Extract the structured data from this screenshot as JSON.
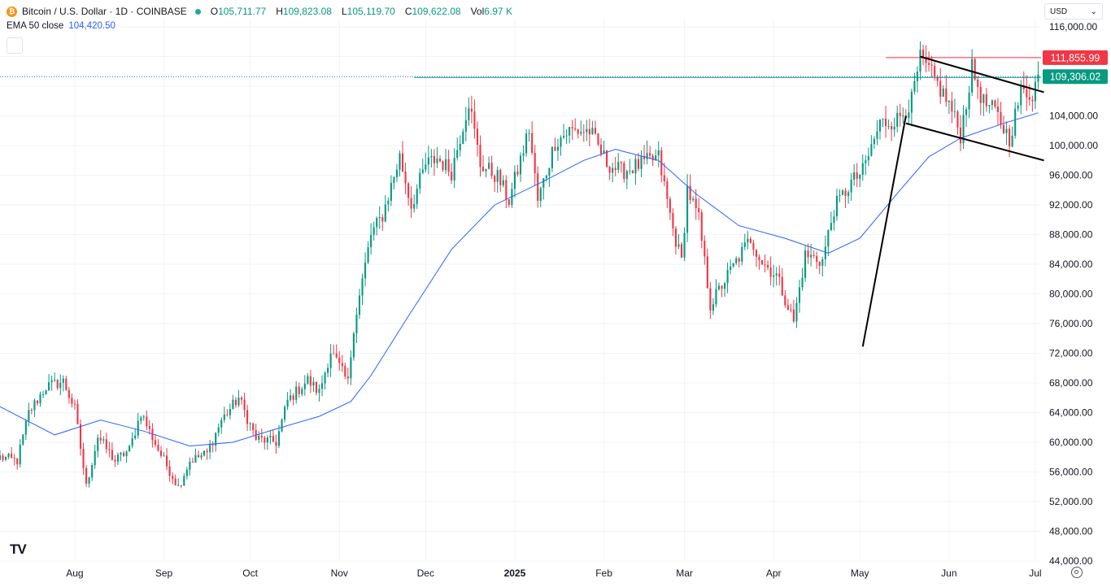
{
  "legend": {
    "symbol_title": "Bitcoin / U.S. Dollar · 1D · COINBASE",
    "open_label": "O",
    "open": "105,711.77",
    "high_label": "H",
    "high": "109,823.08",
    "low_label": "L",
    "low": "105,119.70",
    "close_label": "C",
    "close": "109,622.08",
    "vol_label": "Vol",
    "vol": "6.97 K",
    "ema_label": "EMA 50 close",
    "ema_value": "104,420.50"
  },
  "currency": {
    "selected": "USD"
  },
  "logo_text": "TV",
  "colors": {
    "up": "#089981",
    "down": "#f23645",
    "ema": "#2962ff",
    "resistance": "#f23645",
    "price_line": "#089981",
    "grid": "#f0f3fa",
    "pattern": "#000000"
  },
  "chart_data": {
    "type": "candlestick",
    "symbol": "Bitcoin / U.S. Dollar",
    "interval": "1D",
    "exchange": "COINBASE",
    "ylim": [
      44000,
      117000
    ],
    "y_ticks": [
      116000,
      112000,
      108000,
      104000,
      100000,
      96000,
      92000,
      88000,
      84000,
      80000,
      76000,
      72000,
      68000,
      64000,
      60000,
      56000,
      52000,
      48000,
      44000
    ],
    "y_tick_labels": [
      "116,000.00",
      "",
      "",
      "104,000.00",
      "100,000.00",
      "96,000.00",
      "92,000.00",
      "88,000.00",
      "84,000.00",
      "80,000.00",
      "76,000.00",
      "72,000.00",
      "68,000.00",
      "64,000.00",
      "60,000.00",
      "56,000.00",
      "52,000.00",
      "48,000.00",
      "44,000.00"
    ],
    "x_range": [
      "2024-07-06",
      "2025-07-03"
    ],
    "x_ticks": [
      {
        "date": "2024-08-01",
        "label": "Aug"
      },
      {
        "date": "2024-09-01",
        "label": "Sep"
      },
      {
        "date": "2024-10-01",
        "label": "Oct"
      },
      {
        "date": "2024-11-01",
        "label": "Nov"
      },
      {
        "date": "2024-12-01",
        "label": "Dec"
      },
      {
        "date": "2025-01-01",
        "label": "2025"
      },
      {
        "date": "2025-02-01",
        "label": "Feb"
      },
      {
        "date": "2025-03-01",
        "label": "Mar"
      },
      {
        "date": "2025-04-01",
        "label": "Apr"
      },
      {
        "date": "2025-05-01",
        "label": "May"
      },
      {
        "date": "2025-06-01",
        "label": "Jun"
      },
      {
        "date": "2025-07-01",
        "label": "Jul"
      }
    ],
    "close_path": [
      [
        "2024-07-06",
        58000
      ],
      [
        "2024-07-12",
        57500
      ],
      [
        "2024-07-16",
        64000
      ],
      [
        "2024-07-22",
        67500
      ],
      [
        "2024-07-28",
        68200
      ],
      [
        "2024-08-01",
        64500
      ],
      [
        "2024-08-05",
        54000
      ],
      [
        "2024-08-09",
        60800
      ],
      [
        "2024-08-15",
        57500
      ],
      [
        "2024-08-20",
        59000
      ],
      [
        "2024-08-24",
        64000
      ],
      [
        "2024-08-30",
        59000
      ],
      [
        "2024-09-06",
        54000
      ],
      [
        "2024-09-10",
        57500
      ],
      [
        "2024-09-16",
        58500
      ],
      [
        "2024-09-21",
        63000
      ],
      [
        "2024-09-27",
        66000
      ],
      [
        "2024-10-03",
        60500
      ],
      [
        "2024-10-10",
        60000
      ],
      [
        "2024-10-14",
        65600
      ],
      [
        "2024-10-21",
        68400
      ],
      [
        "2024-10-25",
        66700
      ],
      [
        "2024-10-29",
        72300
      ],
      [
        "2024-11-04",
        68000
      ],
      [
        "2024-11-06",
        75600
      ],
      [
        "2024-11-12",
        88000
      ],
      [
        "2024-11-16",
        90600
      ],
      [
        "2024-11-22",
        98500
      ],
      [
        "2024-11-26",
        91900
      ],
      [
        "2024-12-01",
        97400
      ],
      [
        "2024-12-05",
        98300
      ],
      [
        "2024-12-10",
        96500
      ],
      [
        "2024-12-16",
        106000
      ],
      [
        "2024-12-20",
        97500
      ],
      [
        "2024-12-26",
        95800
      ],
      [
        "2024-12-30",
        92600
      ],
      [
        "2025-01-06",
        102200
      ],
      [
        "2025-01-09",
        92500
      ],
      [
        "2025-01-15",
        100500
      ],
      [
        "2025-01-20",
        102000
      ],
      [
        "2025-01-27",
        102000
      ],
      [
        "2025-02-02",
        97700
      ],
      [
        "2025-02-07",
        96500
      ],
      [
        "2025-02-14",
        97500
      ],
      [
        "2025-02-20",
        98400
      ],
      [
        "2025-02-25",
        88700
      ],
      [
        "2025-02-28",
        84400
      ],
      [
        "2025-03-02",
        94200
      ],
      [
        "2025-03-06",
        90000
      ],
      [
        "2025-03-10",
        78500
      ],
      [
        "2025-03-16",
        82500
      ],
      [
        "2025-03-24",
        87500
      ],
      [
        "2025-03-28",
        84300
      ],
      [
        "2025-04-02",
        82500
      ],
      [
        "2025-04-08",
        76300
      ],
      [
        "2025-04-12",
        85200
      ],
      [
        "2025-04-18",
        84500
      ],
      [
        "2025-04-22",
        91500
      ],
      [
        "2025-04-28",
        95000
      ],
      [
        "2025-05-02",
        96500
      ],
      [
        "2025-05-08",
        103000
      ],
      [
        "2025-05-14",
        103500
      ],
      [
        "2025-05-19",
        106000
      ],
      [
        "2025-05-22",
        111600
      ],
      [
        "2025-05-27",
        108900
      ],
      [
        "2025-06-01",
        105600
      ],
      [
        "2025-06-05",
        101500
      ],
      [
        "2025-06-09",
        110300
      ],
      [
        "2025-06-13",
        105800
      ],
      [
        "2025-06-17",
        104500
      ],
      [
        "2025-06-22",
        101000
      ],
      [
        "2025-06-26",
        107200
      ],
      [
        "2025-06-30",
        107100
      ],
      [
        "2025-07-02",
        109622
      ]
    ],
    "ema_path": [
      [
        "2024-07-06",
        64800
      ],
      [
        "2024-07-25",
        61000
      ],
      [
        "2024-08-10",
        63000
      ],
      [
        "2024-08-25",
        61500
      ],
      [
        "2024-09-10",
        59500
      ],
      [
        "2024-09-25",
        60000
      ],
      [
        "2024-10-10",
        61800
      ],
      [
        "2024-10-25",
        63500
      ],
      [
        "2024-11-05",
        65500
      ],
      [
        "2024-11-12",
        69000
      ],
      [
        "2024-11-25",
        77000
      ],
      [
        "2024-12-10",
        86000
      ],
      [
        "2024-12-25",
        92000
      ],
      [
        "2025-01-10",
        95000
      ],
      [
        "2025-01-25",
        98000
      ],
      [
        "2025-02-05",
        99500
      ],
      [
        "2025-02-20",
        98000
      ],
      [
        "2025-03-05",
        93500
      ],
      [
        "2025-03-20",
        89200
      ],
      [
        "2025-04-05",
        87500
      ],
      [
        "2025-04-20",
        85500
      ],
      [
        "2025-05-01",
        87500
      ],
      [
        "2025-05-15",
        94000
      ],
      [
        "2025-05-25",
        98500
      ],
      [
        "2025-06-05",
        101000
      ],
      [
        "2025-06-20",
        103000
      ],
      [
        "2025-07-02",
        104420
      ]
    ],
    "annotations": {
      "resistance_level": {
        "value": 111855.99,
        "label": "111,855.99",
        "from": "2025-05-10"
      },
      "current_price": {
        "value": 109306.02,
        "label": "109,306.02"
      },
      "support_line": {
        "value": 109306.02,
        "from": "2024-11-27"
      },
      "flag_pole": [
        [
          "2025-05-02",
          72900
        ],
        [
          "2025-05-17",
          104000
        ]
      ],
      "channel_upper": [
        [
          "2025-05-22",
          112000
        ],
        [
          "2025-07-04",
          107200
        ]
      ],
      "channel_lower": [
        [
          "2025-05-17",
          103000
        ],
        [
          "2025-07-04",
          98000
        ]
      ]
    }
  }
}
